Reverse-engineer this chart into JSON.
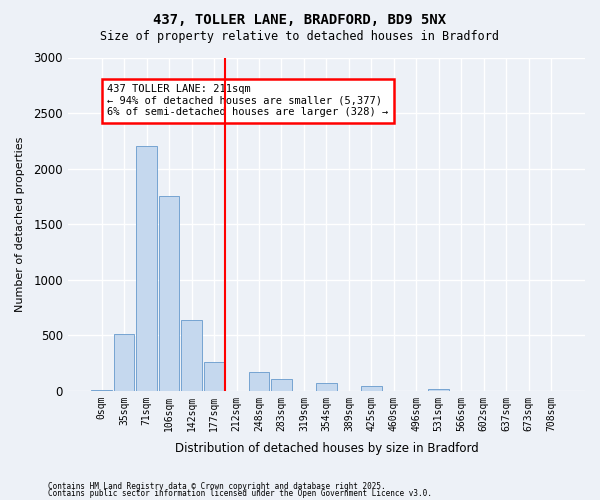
{
  "title1": "437, TOLLER LANE, BRADFORD, BD9 5NX",
  "title2": "Size of property relative to detached houses in Bradford",
  "xlabel": "Distribution of detached houses by size in Bradford",
  "ylabel": "Number of detached properties",
  "bin_labels": [
    "0sqm",
    "35sqm",
    "71sqm",
    "106sqm",
    "142sqm",
    "177sqm",
    "212sqm",
    "248sqm",
    "283sqm",
    "319sqm",
    "354sqm",
    "389sqm",
    "425sqm",
    "460sqm",
    "496sqm",
    "531sqm",
    "566sqm",
    "602sqm",
    "637sqm",
    "673sqm",
    "708sqm"
  ],
  "bar_values": [
    8,
    510,
    2200,
    1750,
    640,
    255,
    0,
    165,
    110,
    0,
    70,
    0,
    45,
    0,
    0,
    15,
    0,
    0,
    0,
    0,
    0
  ],
  "bar_color": "#c5d8ee",
  "bar_edge_color": "#6699cc",
  "background_color": "#edf1f7",
  "grid_color": "#ffffff",
  "ylim_max": 3000,
  "yticks": [
    0,
    500,
    1000,
    1500,
    2000,
    2500,
    3000
  ],
  "property_bin_index": 6,
  "annotation_text": "437 TOLLER LANE: 211sqm\n← 94% of detached houses are smaller (5,377)\n6% of semi-detached houses are larger (328) →",
  "footnote1": "Contains HM Land Registry data © Crown copyright and database right 2025.",
  "footnote2": "Contains public sector information licensed under the Open Government Licence v3.0."
}
